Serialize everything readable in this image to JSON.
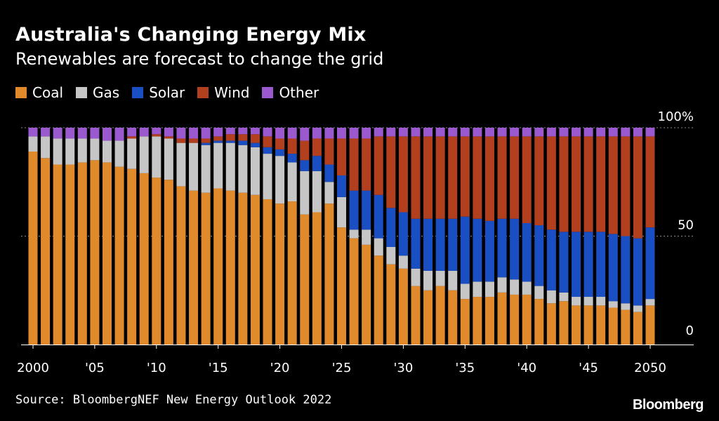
{
  "title": "Australia's Changing Energy Mix",
  "subtitle": "Renewables are forecast to change the grid",
  "source": "Source: BloombergNEF New Energy Outlook 2022",
  "brand": "Bloomberg",
  "legend": [
    {
      "label": "Coal",
      "color": "#e08a2c"
    },
    {
      "label": "Gas",
      "color": "#c6c6c6"
    },
    {
      "label": "Solar",
      "color": "#1a4fc4"
    },
    {
      "label": "Wind",
      "color": "#b2401e"
    },
    {
      "label": "Other",
      "color": "#9b59d0"
    }
  ],
  "chart_data": {
    "type": "bar",
    "stacked": true,
    "x": [
      2000,
      2001,
      2002,
      2003,
      2004,
      2005,
      2006,
      2007,
      2008,
      2009,
      2010,
      2011,
      2012,
      2013,
      2014,
      2015,
      2016,
      2017,
      2018,
      2019,
      2020,
      2021,
      2022,
      2023,
      2024,
      2025,
      2026,
      2027,
      2028,
      2029,
      2030,
      2031,
      2032,
      2033,
      2034,
      2035,
      2036,
      2037,
      2038,
      2039,
      2040,
      2041,
      2042,
      2043,
      2044,
      2045,
      2046,
      2047,
      2048,
      2049,
      2050
    ],
    "x_tick_labels": [
      {
        "x": 2000,
        "label": "2000"
      },
      {
        "x": 2005,
        "label": "'05"
      },
      {
        "x": 2010,
        "label": "'10"
      },
      {
        "x": 2015,
        "label": "'15"
      },
      {
        "x": 2020,
        "label": "'20"
      },
      {
        "x": 2025,
        "label": "'25"
      },
      {
        "x": 2030,
        "label": "'30"
      },
      {
        "x": 2035,
        "label": "'35"
      },
      {
        "x": 2040,
        "label": "'40"
      },
      {
        "x": 2045,
        "label": "'45"
      },
      {
        "x": 2050,
        "label": "2050"
      }
    ],
    "y_ticks": [
      {
        "value": 0,
        "label": "0"
      },
      {
        "value": 50,
        "label": "50"
      },
      {
        "value": 100,
        "label": "100%"
      }
    ],
    "ylim": [
      0,
      100
    ],
    "grid": "dotted at 50 and 100",
    "series": [
      {
        "name": "Coal",
        "color": "#e08a2c",
        "values": [
          89,
          86,
          83,
          83,
          84,
          85,
          84,
          82,
          81,
          79,
          77,
          76,
          73,
          71,
          70,
          72,
          71,
          70,
          69,
          67,
          65,
          66,
          60,
          61,
          65,
          54,
          49,
          46,
          41,
          37,
          35,
          27,
          25,
          27,
          25,
          21,
          22,
          22,
          24,
          23,
          23,
          21,
          19,
          20,
          18,
          18,
          18,
          17,
          16,
          15,
          18
        ]
      },
      {
        "name": "Gas",
        "color": "#c6c6c6",
        "values": [
          7,
          10,
          12,
          12,
          11,
          10,
          10,
          12,
          14,
          17,
          19,
          19,
          20,
          22,
          22,
          21,
          22,
          22,
          22,
          21,
          22,
          18,
          20,
          19,
          10,
          14,
          4,
          7,
          8,
          8,
          6,
          8,
          9,
          7,
          9,
          7,
          7,
          7,
          7,
          7,
          6,
          6,
          6,
          4,
          4,
          4,
          4,
          3,
          3,
          3,
          3
        ]
      },
      {
        "name": "Solar",
        "color": "#1a4fc4",
        "values": [
          0,
          0,
          0,
          0,
          0,
          0,
          0,
          0,
          0,
          0,
          0,
          0,
          0,
          0,
          1,
          1,
          1,
          2,
          2,
          3,
          3,
          4,
          5,
          7,
          8,
          10,
          18,
          18,
          20,
          18,
          20,
          23,
          24,
          24,
          24,
          31,
          29,
          28,
          27,
          28,
          27,
          28,
          28,
          28,
          30,
          30,
          30,
          31,
          31,
          31,
          33
        ]
      },
      {
        "name": "Wind",
        "color": "#b2401e",
        "values": [
          0,
          0,
          0,
          0,
          0,
          0,
          0,
          0,
          1,
          0,
          1,
          1,
          2,
          2,
          2,
          2,
          3,
          3,
          4,
          5,
          5,
          7,
          9,
          8,
          12,
          17,
          24,
          24,
          27,
          33,
          35,
          38,
          38,
          38,
          38,
          37,
          38,
          39,
          38,
          38,
          40,
          41,
          43,
          44,
          44,
          44,
          44,
          45,
          46,
          47,
          42
        ]
      },
      {
        "name": "Other",
        "color": "#9b59d0",
        "values": [
          4,
          4,
          5,
          5,
          5,
          5,
          6,
          6,
          4,
          4,
          3,
          4,
          5,
          5,
          5,
          4,
          3,
          3,
          3,
          4,
          5,
          5,
          6,
          5,
          5,
          5,
          5,
          5,
          4,
          4,
          4,
          4,
          4,
          4,
          4,
          4,
          4,
          4,
          4,
          4,
          4,
          4,
          4,
          4,
          4,
          4,
          4,
          4,
          4,
          4,
          4
        ]
      }
    ]
  }
}
